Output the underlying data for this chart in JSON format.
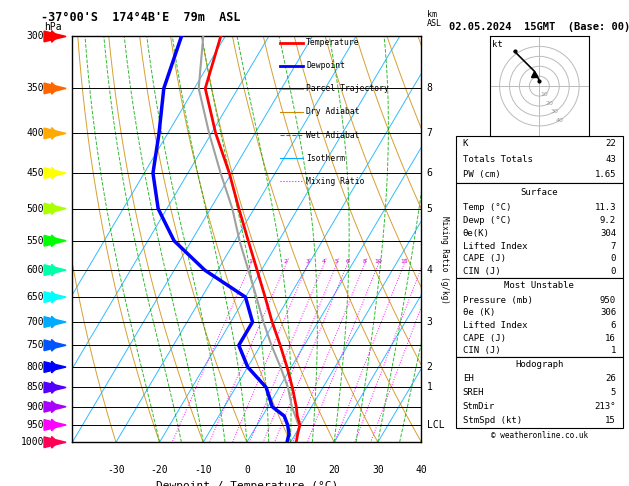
{
  "title_left": "-37°00'S  174°4B'E  79m  ASL",
  "title_right": "02.05.2024  15GMT  (Base: 00)",
  "hpa_label": "hPa",
  "xlabel": "Dewpoint / Temperature (°C)",
  "pressure_ticks": [
    300,
    350,
    400,
    450,
    500,
    550,
    600,
    650,
    700,
    750,
    800,
    850,
    900,
    950,
    1000
  ],
  "km_labels": {
    "350": "8",
    "400": "7",
    "450": "6",
    "500": "5",
    "600": "4",
    "700": "3",
    "800": "2",
    "850": "1",
    "950": "LCL"
  },
  "temp_profile": {
    "pressure": [
      1000,
      975,
      950,
      925,
      900,
      850,
      800,
      750,
      700,
      650,
      600,
      550,
      500,
      450,
      400,
      350,
      300
    ],
    "temp": [
      11.3,
      10.5,
      9.8,
      8.0,
      6.5,
      3.0,
      -1.0,
      -5.5,
      -10.5,
      -15.5,
      -21.0,
      -27.0,
      -33.5,
      -40.5,
      -49.0,
      -57.5,
      -61.0
    ],
    "color": "#ff0000",
    "linewidth": 2.0
  },
  "dewpoint_profile": {
    "pressure": [
      1000,
      975,
      950,
      925,
      900,
      850,
      800,
      750,
      700,
      650,
      600,
      550,
      500,
      450,
      400,
      350,
      300
    ],
    "dewp": [
      9.2,
      8.5,
      7.0,
      5.0,
      1.0,
      -3.0,
      -10.0,
      -15.0,
      -15.0,
      -20.0,
      -33.0,
      -44.0,
      -52.0,
      -58.0,
      -62.0,
      -67.0,
      -70.0
    ],
    "color": "#0000ff",
    "linewidth": 2.5
  },
  "parcel_trajectory": {
    "pressure": [
      950,
      900,
      850,
      800,
      750,
      700,
      650,
      600,
      550,
      500,
      450,
      400,
      350,
      300
    ],
    "temp": [
      9.5,
      5.5,
      2.0,
      -2.5,
      -7.5,
      -12.5,
      -17.5,
      -23.0,
      -29.0,
      -35.0,
      -42.5,
      -50.5,
      -59.0,
      -65.0
    ],
    "color": "#a0a0a0",
    "linewidth": 1.5
  },
  "legend_items": [
    {
      "label": "Temperature",
      "color": "#ff0000",
      "lw": 2.0,
      "ls": "-"
    },
    {
      "label": "Dewpoint",
      "color": "#0000ff",
      "lw": 2.0,
      "ls": "-"
    },
    {
      "label": "Parcel Trajectory",
      "color": "#a0a0a0",
      "lw": 1.5,
      "ls": "-"
    },
    {
      "label": "Dry Adiabat",
      "color": "#cc8800",
      "lw": 0.8,
      "ls": "-"
    },
    {
      "label": "Wet Adiabat",
      "color": "#00aa00",
      "lw": 0.8,
      "ls": "--"
    },
    {
      "label": "Isotherm",
      "color": "#00aaff",
      "lw": 0.8,
      "ls": "-"
    },
    {
      "label": "Mixing Ratio",
      "color": "#ff00ff",
      "lw": 0.8,
      "ls": ":"
    }
  ],
  "right_panel": {
    "stats": {
      "K": "22",
      "Totals Totals": "43",
      "PW (cm)": "1.65"
    },
    "surface": {
      "title": "Surface",
      "Temp (°C)": "11.3",
      "Dewp (°C)": "9.2",
      "θe(K)": "304",
      "Lifted Index": "7",
      "CAPE (J)": "0",
      "CIN (J)": "0"
    },
    "most_unstable": {
      "title": "Most Unstable",
      "Pressure (mb)": "950",
      "θe (K)": "306",
      "Lifted Index": "6",
      "CAPE (J)": "16",
      "CIN (J)": "1"
    },
    "hodograph": {
      "title": "Hodograph",
      "EH": "26",
      "SREH": "5",
      "StmDir": "213°",
      "StmSpd (kt)": "15"
    }
  },
  "watermark": "© weatheronline.co.uk",
  "wind_colors": [
    "#ff0000",
    "#ff6600",
    "#ffaa00",
    "#ffff00",
    "#aaff00",
    "#00ff00",
    "#00ffaa",
    "#00ffff",
    "#00aaff",
    "#0055ff",
    "#0000ff",
    "#5500ff",
    "#aa00ff",
    "#ff00ff",
    "#ff0055"
  ],
  "wind_pressures": [
    300,
    350,
    400,
    450,
    500,
    550,
    600,
    650,
    700,
    750,
    800,
    850,
    900,
    950,
    1000
  ]
}
